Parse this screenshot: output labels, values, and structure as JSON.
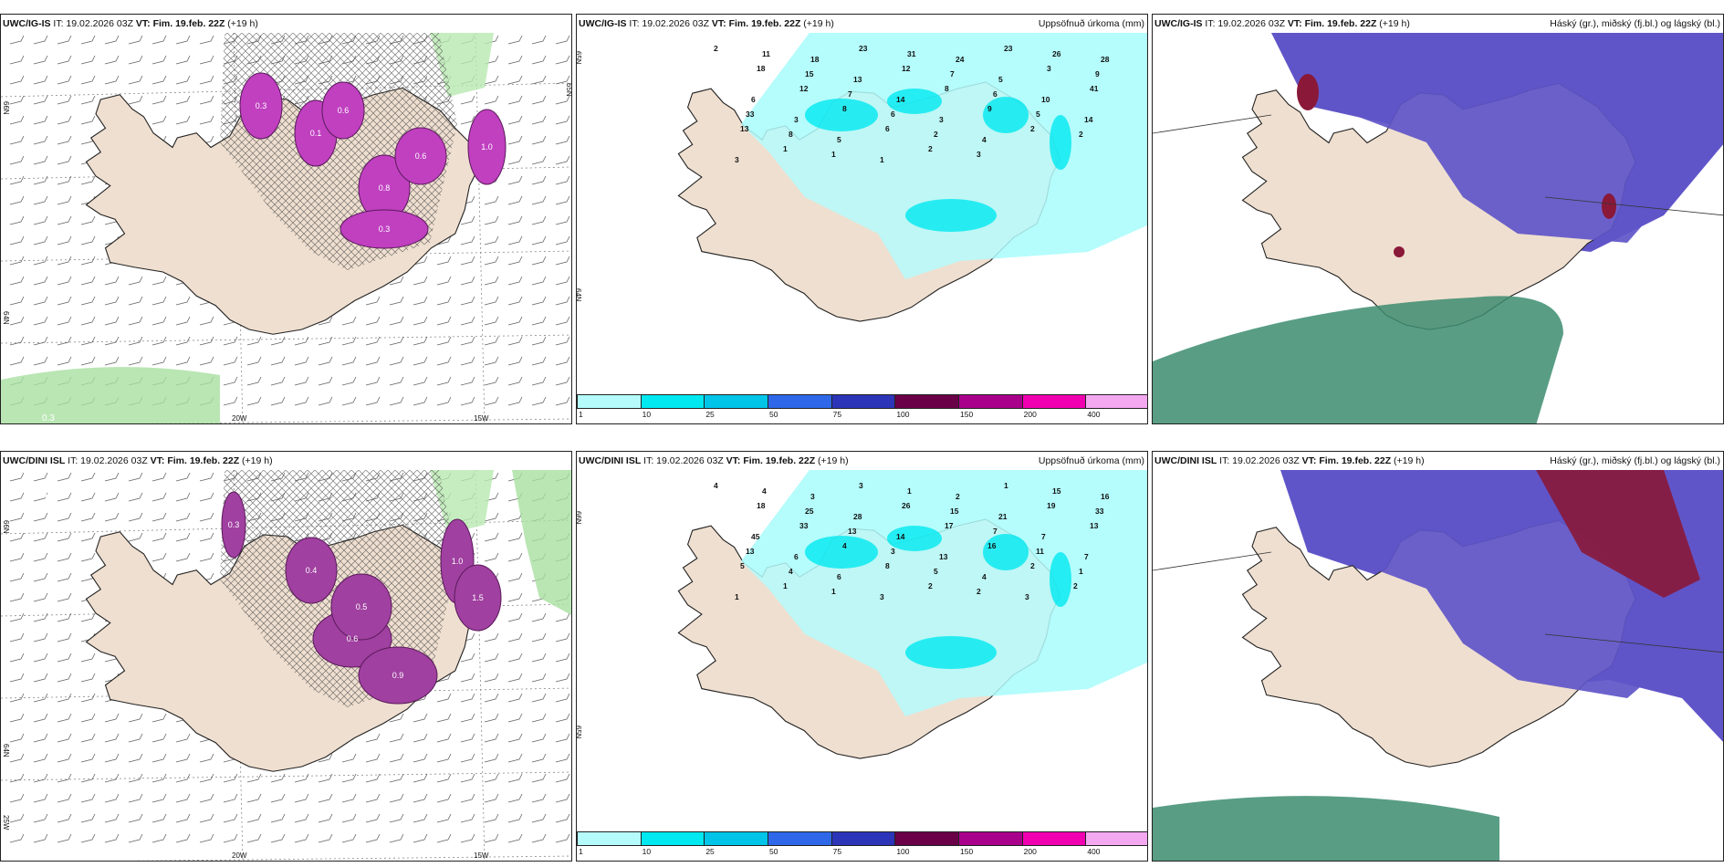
{
  "panels": [
    {
      "id": "p1",
      "model": "UWC/IG-IS",
      "it": "IT: 19.02.2026 03Z",
      "vt_label": "VT:",
      "vt": "Fim. 19.feb. 22Z",
      "lead": "(+19 h)",
      "right_title": "",
      "type": "wind"
    },
    {
      "id": "p2",
      "model": "UWC/IG-IS",
      "it": "IT: 19.02.2026 03Z",
      "vt_label": "VT:",
      "vt": "Fim. 19.feb. 22Z",
      "lead": "(+19 h)",
      "right_title": "Uppsöfnuð úrkoma (mm)",
      "type": "precip"
    },
    {
      "id": "p3",
      "model": "UWC/IG-IS",
      "it": "IT: 19.02.2026 03Z",
      "vt_label": "VT:",
      "vt": "Fim. 19.feb. 22Z",
      "lead": "(+19 h)",
      "right_title": "Háský (gr.), miðský (fj.bl.) og lágský (bl.)",
      "type": "cloud"
    },
    {
      "id": "p4",
      "model": "UWC/DINI ISL",
      "it": "IT: 19.02.2026 03Z",
      "vt_label": "VT:",
      "vt": "Fim. 19.feb. 22Z",
      "lead": "(+19 h)",
      "right_title": "",
      "type": "wind"
    },
    {
      "id": "p5",
      "model": "UWC/DINI ISL",
      "it": "IT: 19.02.2026 03Z",
      "vt_label": "VT:",
      "vt": "Fim. 19.feb. 22Z",
      "lead": "(+19 h)",
      "right_title": "Uppsöfnuð úrkoma (mm)",
      "type": "precip"
    },
    {
      "id": "p6",
      "model": "UWC/DINI ISL",
      "it": "IT: 19.02.2026 03Z",
      "vt_label": "VT:",
      "vt": "Fim. 19.feb. 22Z",
      "lead": "(+19 h)",
      "right_title": "Háský (gr.), miðský (fj.bl.) og lágský (bl.)",
      "type": "cloud"
    }
  ],
  "coords": {
    "lat66": "66N",
    "lat64": "64N",
    "lat65": "65N",
    "lon20": "20W",
    "lon15": "15W",
    "lon25": "25W"
  },
  "colorbar": {
    "ticks": [
      "1",
      "10",
      "25",
      "50",
      "75",
      "100",
      "150",
      "200",
      "400"
    ],
    "colors": [
      "#b5fbfb",
      "#00e8f0",
      "#00c4e8",
      "#2e68e8",
      "#2c34b8",
      "#6a0048",
      "#a8008a",
      "#f000b0",
      "#f4a8f0"
    ]
  },
  "precip_labels_top": [
    "2",
    "11",
    "18",
    "23",
    "31",
    "24",
    "23",
    "26",
    "28",
    "18",
    "15",
    "13",
    "12",
    "7",
    "5",
    "3",
    "9",
    "6",
    "12",
    "7",
    "14",
    "8",
    "6",
    "10",
    "41",
    "33",
    "3",
    "8",
    "6",
    "3",
    "9",
    "5",
    "14",
    "13",
    "8",
    "5",
    "6",
    "2",
    "4",
    "2",
    "2",
    "3",
    "1",
    "1",
    "1",
    "2",
    "3"
  ],
  "precip_labels_bottom": [
    "4",
    "4",
    "3",
    "3",
    "1",
    "2",
    "1",
    "15",
    "16",
    "18",
    "25",
    "28",
    "26",
    "15",
    "21",
    "19",
    "33",
    "45",
    "33",
    "13",
    "14",
    "17",
    "7",
    "7",
    "13",
    "13",
    "6",
    "4",
    "3",
    "13",
    "16",
    "11",
    "7",
    "5",
    "4",
    "6",
    "8",
    "5",
    "4",
    "2",
    "1",
    "1",
    "1",
    "1",
    "3",
    "2",
    "2",
    "3",
    "2"
  ],
  "wind_values_top": [
    "0.3",
    "0.1",
    "0.6",
    "0.8",
    "0.6",
    "1.0",
    "0.3"
  ],
  "wind_values_bottom": [
    "0.3",
    "0.4",
    "0.6",
    "0.9",
    "1.0",
    "1.5",
    "0.5"
  ],
  "colors": {
    "land": "#efdfd0",
    "coast": "#222222",
    "precip_light": "#b5fbfb",
    "precip_mid": "#00e8f0",
    "magenta": "#c040c0",
    "purple": "#6055c8",
    "darkred": "#8a1838",
    "green": "#3c8c70"
  }
}
